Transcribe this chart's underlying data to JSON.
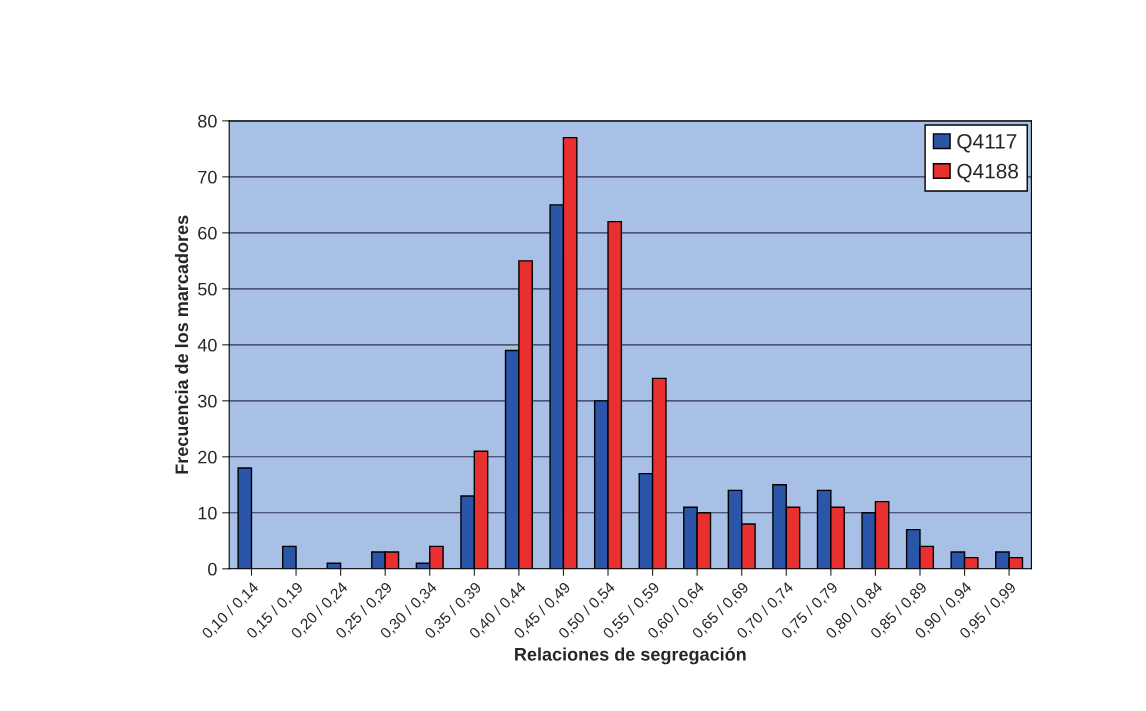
{
  "chart_data": {
    "type": "bar",
    "xlabel": "Relaciones de segregación",
    "ylabel": "Frecuencia de los marcadores",
    "categories": [
      "0,10 / 0,14",
      "0,15 / 0,19",
      "0,20 / 0,24",
      "0,25 / 0,29",
      "0,30 / 0,34",
      "0,35 / 0,39",
      "0,40 / 0,44",
      "0,45 / 0,49",
      "0,50 / 0,54",
      "0,55 / 0,59",
      "0,60 / 0,64",
      "0,65 / 0,69",
      "0,70 / 0,74",
      "0,75 / 0,79",
      "0,80 / 0,84",
      "0,85 / 0,89",
      "0,90 / 0,94",
      "0,95 / 0,99"
    ],
    "series": [
      {
        "name": "Q4117",
        "color": "#2a55a8",
        "values": [
          18,
          4,
          1,
          3,
          1,
          13,
          39,
          65,
          30,
          17,
          11,
          14,
          15,
          14,
          10,
          7,
          3,
          3
        ]
      },
      {
        "name": "Q4188",
        "color": "#e83030",
        "values": [
          null,
          null,
          null,
          3,
          4,
          21,
          55,
          77,
          62,
          34,
          10,
          8,
          11,
          11,
          12,
          4,
          2,
          2
        ]
      }
    ],
    "ylim": [
      0,
      80
    ],
    "yticks": [
      0,
      10,
      20,
      30,
      40,
      50,
      60,
      70,
      80
    ],
    "grid": "y",
    "legend": "top right"
  }
}
